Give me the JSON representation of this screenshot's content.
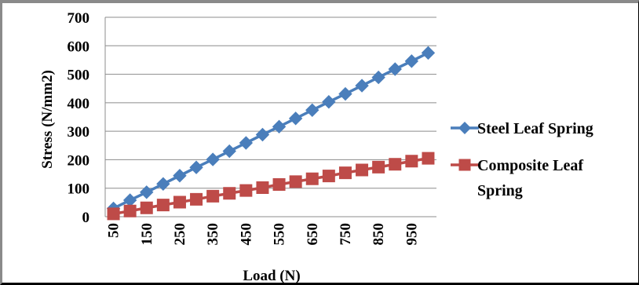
{
  "chart_data": {
    "type": "line",
    "xlabel": "Load (N)",
    "ylabel": "Stress (N/mm2)",
    "ylim": [
      0,
      700
    ],
    "yticks": [
      0,
      100,
      200,
      300,
      400,
      500,
      600,
      700
    ],
    "x": [
      50,
      100,
      150,
      200,
      250,
      300,
      350,
      400,
      450,
      500,
      550,
      600,
      650,
      700,
      750,
      800,
      850,
      900,
      950,
      1000
    ],
    "x_tick_labels": [
      "50",
      "150",
      "250",
      "350",
      "450",
      "550",
      "650",
      "750",
      "850",
      "950"
    ],
    "grid": "horizontal",
    "legend_position": "right",
    "series": [
      {
        "name": "Steel Leaf Spring",
        "color": "#4a7ebb",
        "marker": "diamond",
        "values": [
          29,
          58,
          86,
          115,
          144,
          173,
          201,
          230,
          259,
          288,
          316,
          345,
          374,
          403,
          431,
          460,
          489,
          518,
          546,
          575
        ]
      },
      {
        "name": "Composite Leaf Spring",
        "name_lines": [
          "Composite Leaf",
          "Spring"
        ],
        "color": "#be4b48",
        "marker": "square",
        "values": [
          10,
          20,
          31,
          41,
          51,
          61,
          72,
          82,
          92,
          102,
          113,
          123,
          133,
          143,
          154,
          164,
          174,
          184,
          195,
          205
        ]
      }
    ]
  }
}
